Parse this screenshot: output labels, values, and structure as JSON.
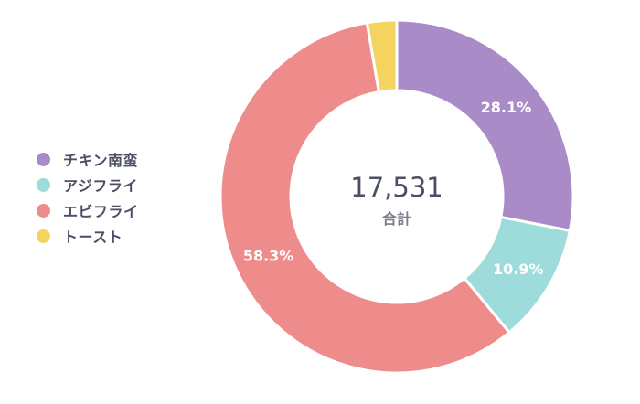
{
  "chart_data": {
    "type": "pie",
    "categories": [
      "チキン南蛮",
      "アジフライ",
      "エビフライ",
      "トースト"
    ],
    "values": [
      28.1,
      10.9,
      58.3,
      2.7
    ],
    "value_unit": "%",
    "data_labels": [
      "28.1%",
      "10.9%",
      "58.3%",
      ""
    ],
    "colors": [
      "#a98bc8",
      "#9ddcda",
      "#ee8c8c",
      "#f5d35f"
    ],
    "donut": true,
    "center_value": "17,531",
    "center_label": "合計",
    "legend_position": "left"
  }
}
